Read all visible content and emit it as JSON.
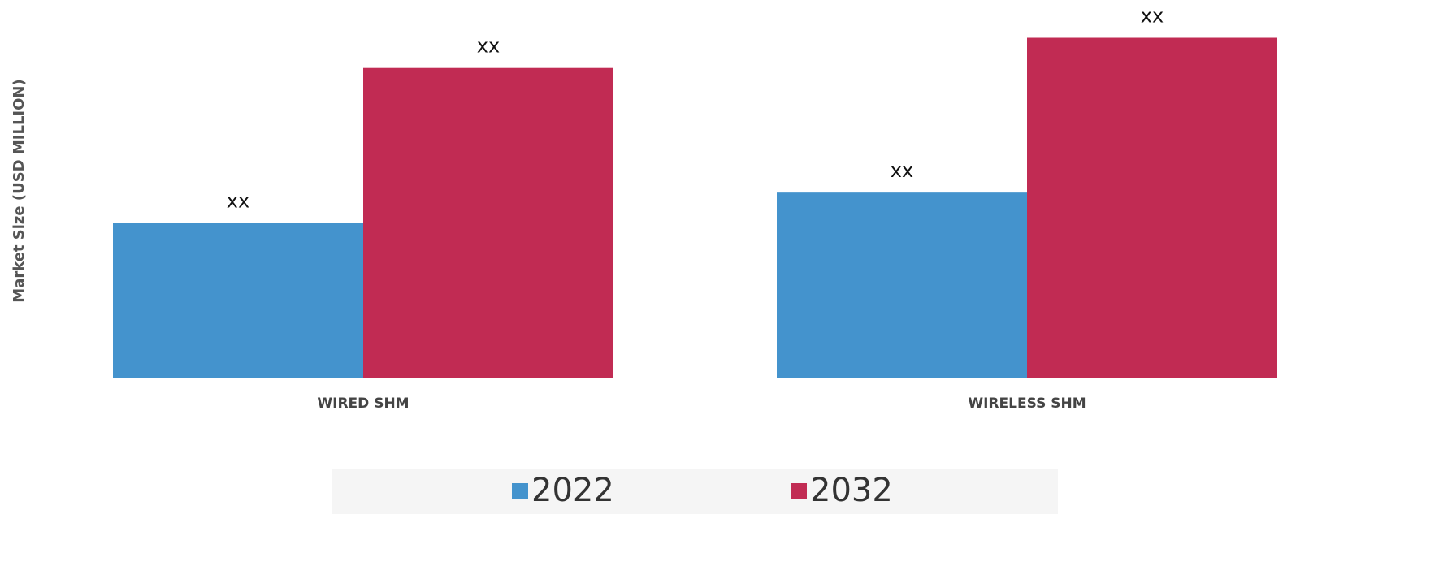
{
  "chart_data": {
    "type": "bar",
    "y_label": "Market Size (USD MILLION)",
    "categories": [
      "WIRED SHM",
      "WIRELESS SHM"
    ],
    "series": [
      {
        "name": "2022",
        "color": "#4493cd",
        "values": [
          41,
          49
        ],
        "value_labels": [
          "xx",
          "xx"
        ]
      },
      {
        "name": "2032",
        "color": "#c12b53",
        "values": [
          82,
          90
        ],
        "value_labels": [
          "xx",
          "xx"
        ]
      }
    ],
    "ylim": [
      0,
      100
    ]
  }
}
